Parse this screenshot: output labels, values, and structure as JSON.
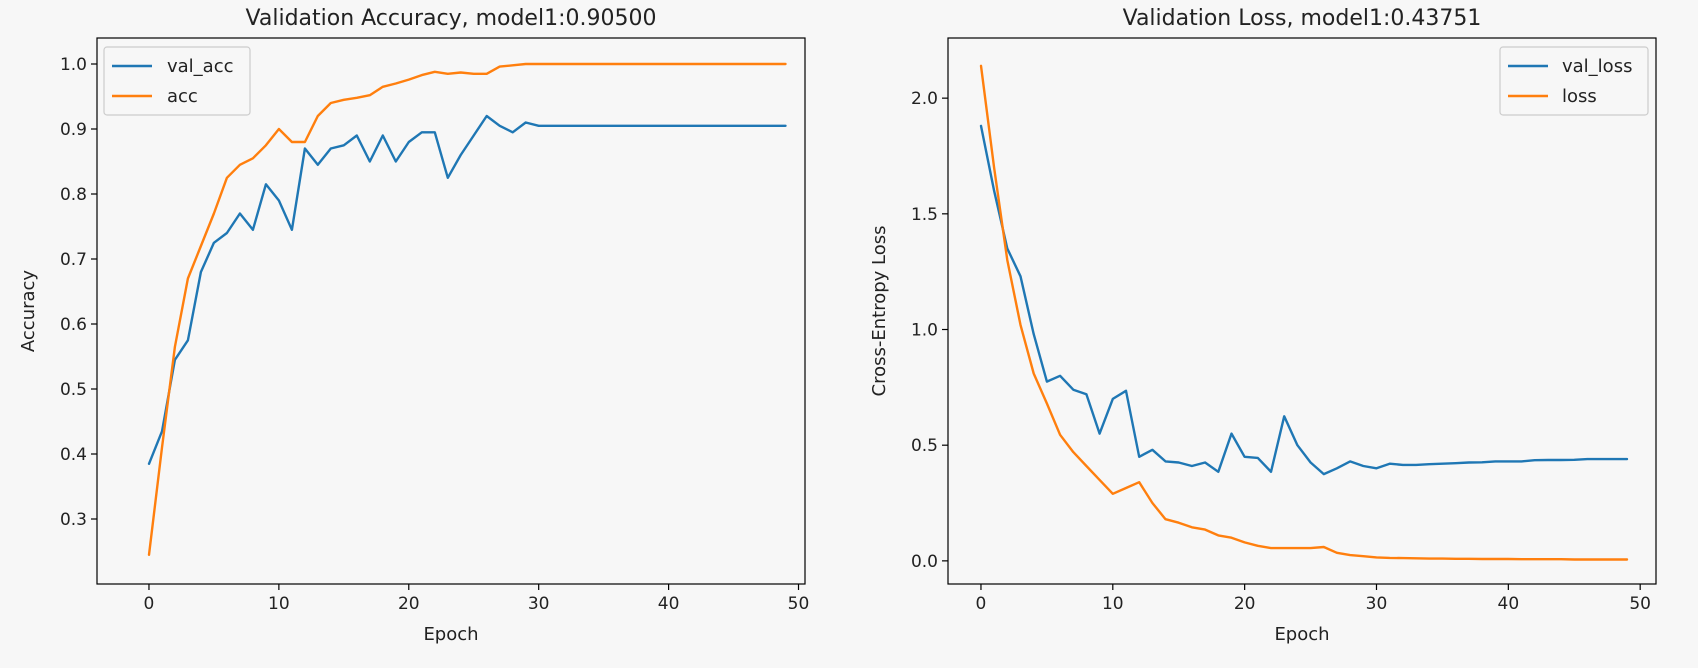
{
  "colors": {
    "series1": "#1f77b4",
    "series2": "#ff7f0e",
    "background": "#f7f7f7"
  },
  "chart_data": [
    {
      "type": "line",
      "title": "Validation Accuracy, model1:0.90500",
      "xlabel": "Epoch",
      "ylabel": "Accuracy",
      "xlim": [
        -4,
        50.5
      ],
      "ylim": [
        0.2,
        1.04
      ],
      "xticks": [
        0,
        10,
        20,
        30,
        40,
        50
      ],
      "yticks": [
        0.3,
        0.4,
        0.5,
        0.6,
        0.7,
        0.8,
        0.9,
        1.0
      ],
      "ytick_labels": [
        "0.3",
        "0.4",
        "0.5",
        "0.6",
        "0.7",
        "0.8",
        "0.9",
        "1.0"
      ],
      "legend_position": "upper-left",
      "series": [
        {
          "name": "val_acc",
          "color": "#1f77b4",
          "x": [
            0,
            1,
            2,
            3,
            4,
            5,
            6,
            7,
            8,
            9,
            10,
            11,
            12,
            13,
            14,
            15,
            16,
            17,
            18,
            19,
            20,
            21,
            22,
            23,
            24,
            25,
            26,
            27,
            28,
            29,
            30,
            31,
            32,
            33,
            34,
            35,
            36,
            37,
            38,
            39,
            40,
            41,
            42,
            43,
            44,
            45,
            46,
            47,
            48,
            49
          ],
          "y": [
            0.385,
            0.435,
            0.545,
            0.575,
            0.68,
            0.725,
            0.74,
            0.77,
            0.745,
            0.815,
            0.79,
            0.745,
            0.87,
            0.845,
            0.87,
            0.875,
            0.89,
            0.85,
            0.89,
            0.85,
            0.88,
            0.895,
            0.895,
            0.825,
            0.86,
            0.89,
            0.92,
            0.905,
            0.895,
            0.91,
            0.905,
            0.905,
            0.905,
            0.905,
            0.905,
            0.905,
            0.905,
            0.905,
            0.905,
            0.905,
            0.905,
            0.905,
            0.905,
            0.905,
            0.905,
            0.905,
            0.905,
            0.905,
            0.905,
            0.905
          ]
        },
        {
          "name": "acc",
          "color": "#ff7f0e",
          "x": [
            0,
            1,
            2,
            3,
            4,
            5,
            6,
            7,
            8,
            9,
            10,
            11,
            12,
            13,
            14,
            15,
            16,
            17,
            18,
            19,
            20,
            21,
            22,
            23,
            24,
            25,
            26,
            27,
            28,
            29,
            30,
            31,
            32,
            33,
            34,
            35,
            36,
            37,
            38,
            39,
            40,
            41,
            42,
            43,
            44,
            45,
            46,
            47,
            48,
            49
          ],
          "y": [
            0.245,
            0.41,
            0.565,
            0.67,
            0.72,
            0.77,
            0.825,
            0.845,
            0.855,
            0.875,
            0.9,
            0.88,
            0.88,
            0.92,
            0.94,
            0.945,
            0.948,
            0.952,
            0.965,
            0.97,
            0.976,
            0.983,
            0.988,
            0.985,
            0.987,
            0.985,
            0.985,
            0.996,
            0.998,
            1.0,
            1.0,
            1.0,
            1.0,
            1.0,
            1.0,
            1.0,
            1.0,
            1.0,
            1.0,
            1.0,
            1.0,
            1.0,
            1.0,
            1.0,
            1.0,
            1.0,
            1.0,
            1.0,
            1.0,
            1.0
          ]
        }
      ]
    },
    {
      "type": "line",
      "title": "Validation Loss, model1:0.43751",
      "xlabel": "Epoch",
      "ylabel": "Cross-Entropy Loss",
      "xlim": [
        -2.5,
        51.2
      ],
      "ylim": [
        -0.1,
        2.26
      ],
      "xticks": [
        0,
        10,
        20,
        30,
        40,
        50
      ],
      "yticks": [
        0.0,
        0.5,
        1.0,
        1.5,
        2.0
      ],
      "ytick_labels": [
        "0.0",
        "0.5",
        "1.0",
        "1.5",
        "2.0"
      ],
      "legend_position": "upper-right",
      "series": [
        {
          "name": "val_loss",
          "color": "#1f77b4",
          "x": [
            0,
            1,
            2,
            3,
            4,
            5,
            6,
            7,
            8,
            9,
            10,
            11,
            12,
            13,
            14,
            15,
            16,
            17,
            18,
            19,
            20,
            21,
            22,
            23,
            24,
            25,
            26,
            27,
            28,
            29,
            30,
            31,
            32,
            33,
            34,
            35,
            36,
            37,
            38,
            39,
            40,
            41,
            42,
            43,
            44,
            45,
            46,
            47,
            48,
            49
          ],
          "y": [
            1.88,
            1.6,
            1.35,
            1.23,
            0.98,
            0.775,
            0.8,
            0.74,
            0.72,
            0.55,
            0.7,
            0.735,
            0.45,
            0.48,
            0.43,
            0.425,
            0.41,
            0.425,
            0.385,
            0.55,
            0.45,
            0.445,
            0.385,
            0.625,
            0.5,
            0.425,
            0.375,
            0.4,
            0.43,
            0.41,
            0.4,
            0.42,
            0.415,
            0.415,
            0.418,
            0.42,
            0.422,
            0.425,
            0.426,
            0.43,
            0.43,
            0.43,
            0.435,
            0.436,
            0.436,
            0.437,
            0.44,
            0.44,
            0.44,
            0.44
          ]
        },
        {
          "name": "loss",
          "color": "#ff7f0e",
          "x": [
            0,
            1,
            2,
            3,
            4,
            5,
            6,
            7,
            8,
            9,
            10,
            11,
            12,
            13,
            14,
            15,
            16,
            17,
            18,
            19,
            20,
            21,
            22,
            23,
            24,
            25,
            26,
            27,
            28,
            29,
            30,
            31,
            32,
            33,
            34,
            35,
            36,
            37,
            38,
            39,
            40,
            41,
            42,
            43,
            44,
            45,
            46,
            47,
            48,
            49
          ],
          "y": [
            2.14,
            1.7,
            1.3,
            1.02,
            0.81,
            0.68,
            0.545,
            0.47,
            0.41,
            0.35,
            0.29,
            0.315,
            0.34,
            0.25,
            0.18,
            0.165,
            0.145,
            0.135,
            0.11,
            0.1,
            0.08,
            0.065,
            0.055,
            0.055,
            0.055,
            0.055,
            0.06,
            0.035,
            0.025,
            0.02,
            0.015,
            0.013,
            0.012,
            0.011,
            0.01,
            0.01,
            0.009,
            0.009,
            0.008,
            0.008,
            0.008,
            0.007,
            0.007,
            0.007,
            0.007,
            0.006,
            0.006,
            0.006,
            0.006,
            0.006
          ]
        }
      ]
    }
  ]
}
